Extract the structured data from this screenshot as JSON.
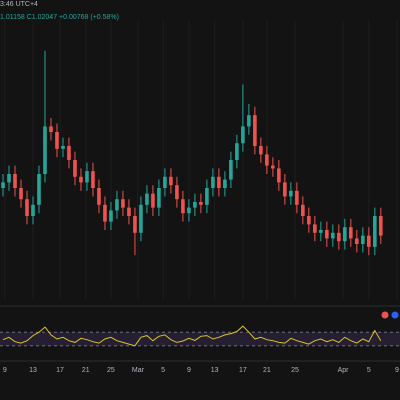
{
  "chart_data": {
    "type": "candlestick",
    "title": "3:46 UTC+4",
    "subtitle": "1.01158  C1.02047 +0.00768 (+0.58%)",
    "up_color": "#26a69a",
    "down_color": "#ef5350",
    "grid": true,
    "xlim": [
      -0.5,
      66.2
    ],
    "ylim": [
      0,
      100
    ],
    "xticks": [
      {
        "value": 0.3,
        "label": "9"
      },
      {
        "value": 5,
        "label": "13"
      },
      {
        "value": 9.5,
        "label": "17"
      },
      {
        "value": 13.8,
        "label": "21"
      },
      {
        "value": 18,
        "label": "25"
      },
      {
        "value": 22.5,
        "label": "Mar"
      },
      {
        "value": 26.7,
        "label": "5"
      },
      {
        "value": 31,
        "label": "9"
      },
      {
        "value": 35.3,
        "label": "13"
      },
      {
        "value": 40,
        "label": "17"
      },
      {
        "value": 44,
        "label": "21"
      },
      {
        "value": 48.7,
        "label": "25"
      },
      {
        "value": 56.7,
        "label": "Apr"
      },
      {
        "value": 61,
        "label": "5"
      },
      {
        "value": 65.7,
        "label": "9"
      }
    ],
    "open": [
      40,
      42,
      45,
      40,
      36,
      30,
      34,
      45,
      62,
      60,
      54,
      55,
      50,
      44,
      42,
      46,
      40,
      34,
      28,
      32,
      36,
      33,
      30,
      24,
      34,
      38,
      33,
      40,
      44,
      41,
      36,
      31,
      33,
      35,
      34,
      40,
      44,
      40,
      43,
      50,
      56,
      62,
      66,
      55,
      52,
      48,
      47,
      42,
      37,
      39,
      34,
      30,
      27,
      24,
      25,
      22,
      24,
      21,
      26,
      22,
      20,
      23,
      19,
      30
    ],
    "high": [
      45,
      48,
      48,
      43,
      39,
      37,
      48,
      89,
      65,
      63,
      58,
      58,
      53,
      47,
      49,
      49,
      43,
      37,
      35,
      39,
      39,
      36,
      33,
      37,
      41,
      41,
      43,
      47,
      47,
      44,
      39,
      36,
      38,
      38,
      43,
      47,
      47,
      46,
      53,
      59,
      77,
      70,
      69,
      58,
      55,
      51,
      50,
      45,
      42,
      42,
      37,
      33,
      30,
      28,
      28,
      27,
      27,
      29,
      29,
      25,
      26,
      26,
      33,
      33
    ],
    "low": [
      37,
      39,
      37,
      33,
      27,
      27,
      31,
      42,
      57,
      51,
      51,
      47,
      41,
      39,
      39,
      37,
      31,
      25,
      25,
      29,
      30,
      27,
      16,
      21,
      31,
      30,
      30,
      37,
      38,
      33,
      28,
      28,
      30,
      31,
      31,
      37,
      37,
      37,
      40,
      47,
      53,
      59,
      52,
      49,
      45,
      44,
      39,
      34,
      34,
      31,
      27,
      24,
      21,
      21,
      19,
      19,
      18,
      18,
      19,
      17,
      17,
      16,
      16,
      20
    ],
    "close": [
      42,
      45,
      40,
      36,
      30,
      34,
      45,
      62,
      60,
      54,
      55,
      50,
      44,
      42,
      46,
      40,
      34,
      28,
      32,
      36,
      33,
      30,
      24,
      34,
      38,
      33,
      40,
      44,
      41,
      36,
      31,
      33,
      35,
      34,
      40,
      44,
      40,
      43,
      50,
      56,
      62,
      66,
      55,
      52,
      48,
      47,
      42,
      37,
      39,
      34,
      30,
      27,
      24,
      25,
      22,
      24,
      21,
      26,
      22,
      20,
      23,
      19,
      30,
      23
    ],
    "indicator": {
      "color": "#d8c523",
      "band_color": "#7e57c2",
      "ylim": [
        0,
        100
      ],
      "band": [
        30,
        70
      ],
      "values": [
        48,
        55,
        42,
        38,
        45,
        60,
        70,
        85,
        62,
        50,
        55,
        45,
        40,
        52,
        48,
        42,
        38,
        50,
        55,
        45,
        40,
        35,
        30,
        55,
        60,
        45,
        58,
        62,
        48,
        40,
        44,
        52,
        46,
        58,
        60,
        50,
        55,
        62,
        66,
        72,
        88,
        70,
        50,
        55,
        48,
        45,
        40,
        38,
        52,
        45,
        40,
        35,
        45,
        50,
        42,
        48,
        40,
        55,
        45,
        38,
        50,
        42,
        75,
        45
      ]
    }
  }
}
